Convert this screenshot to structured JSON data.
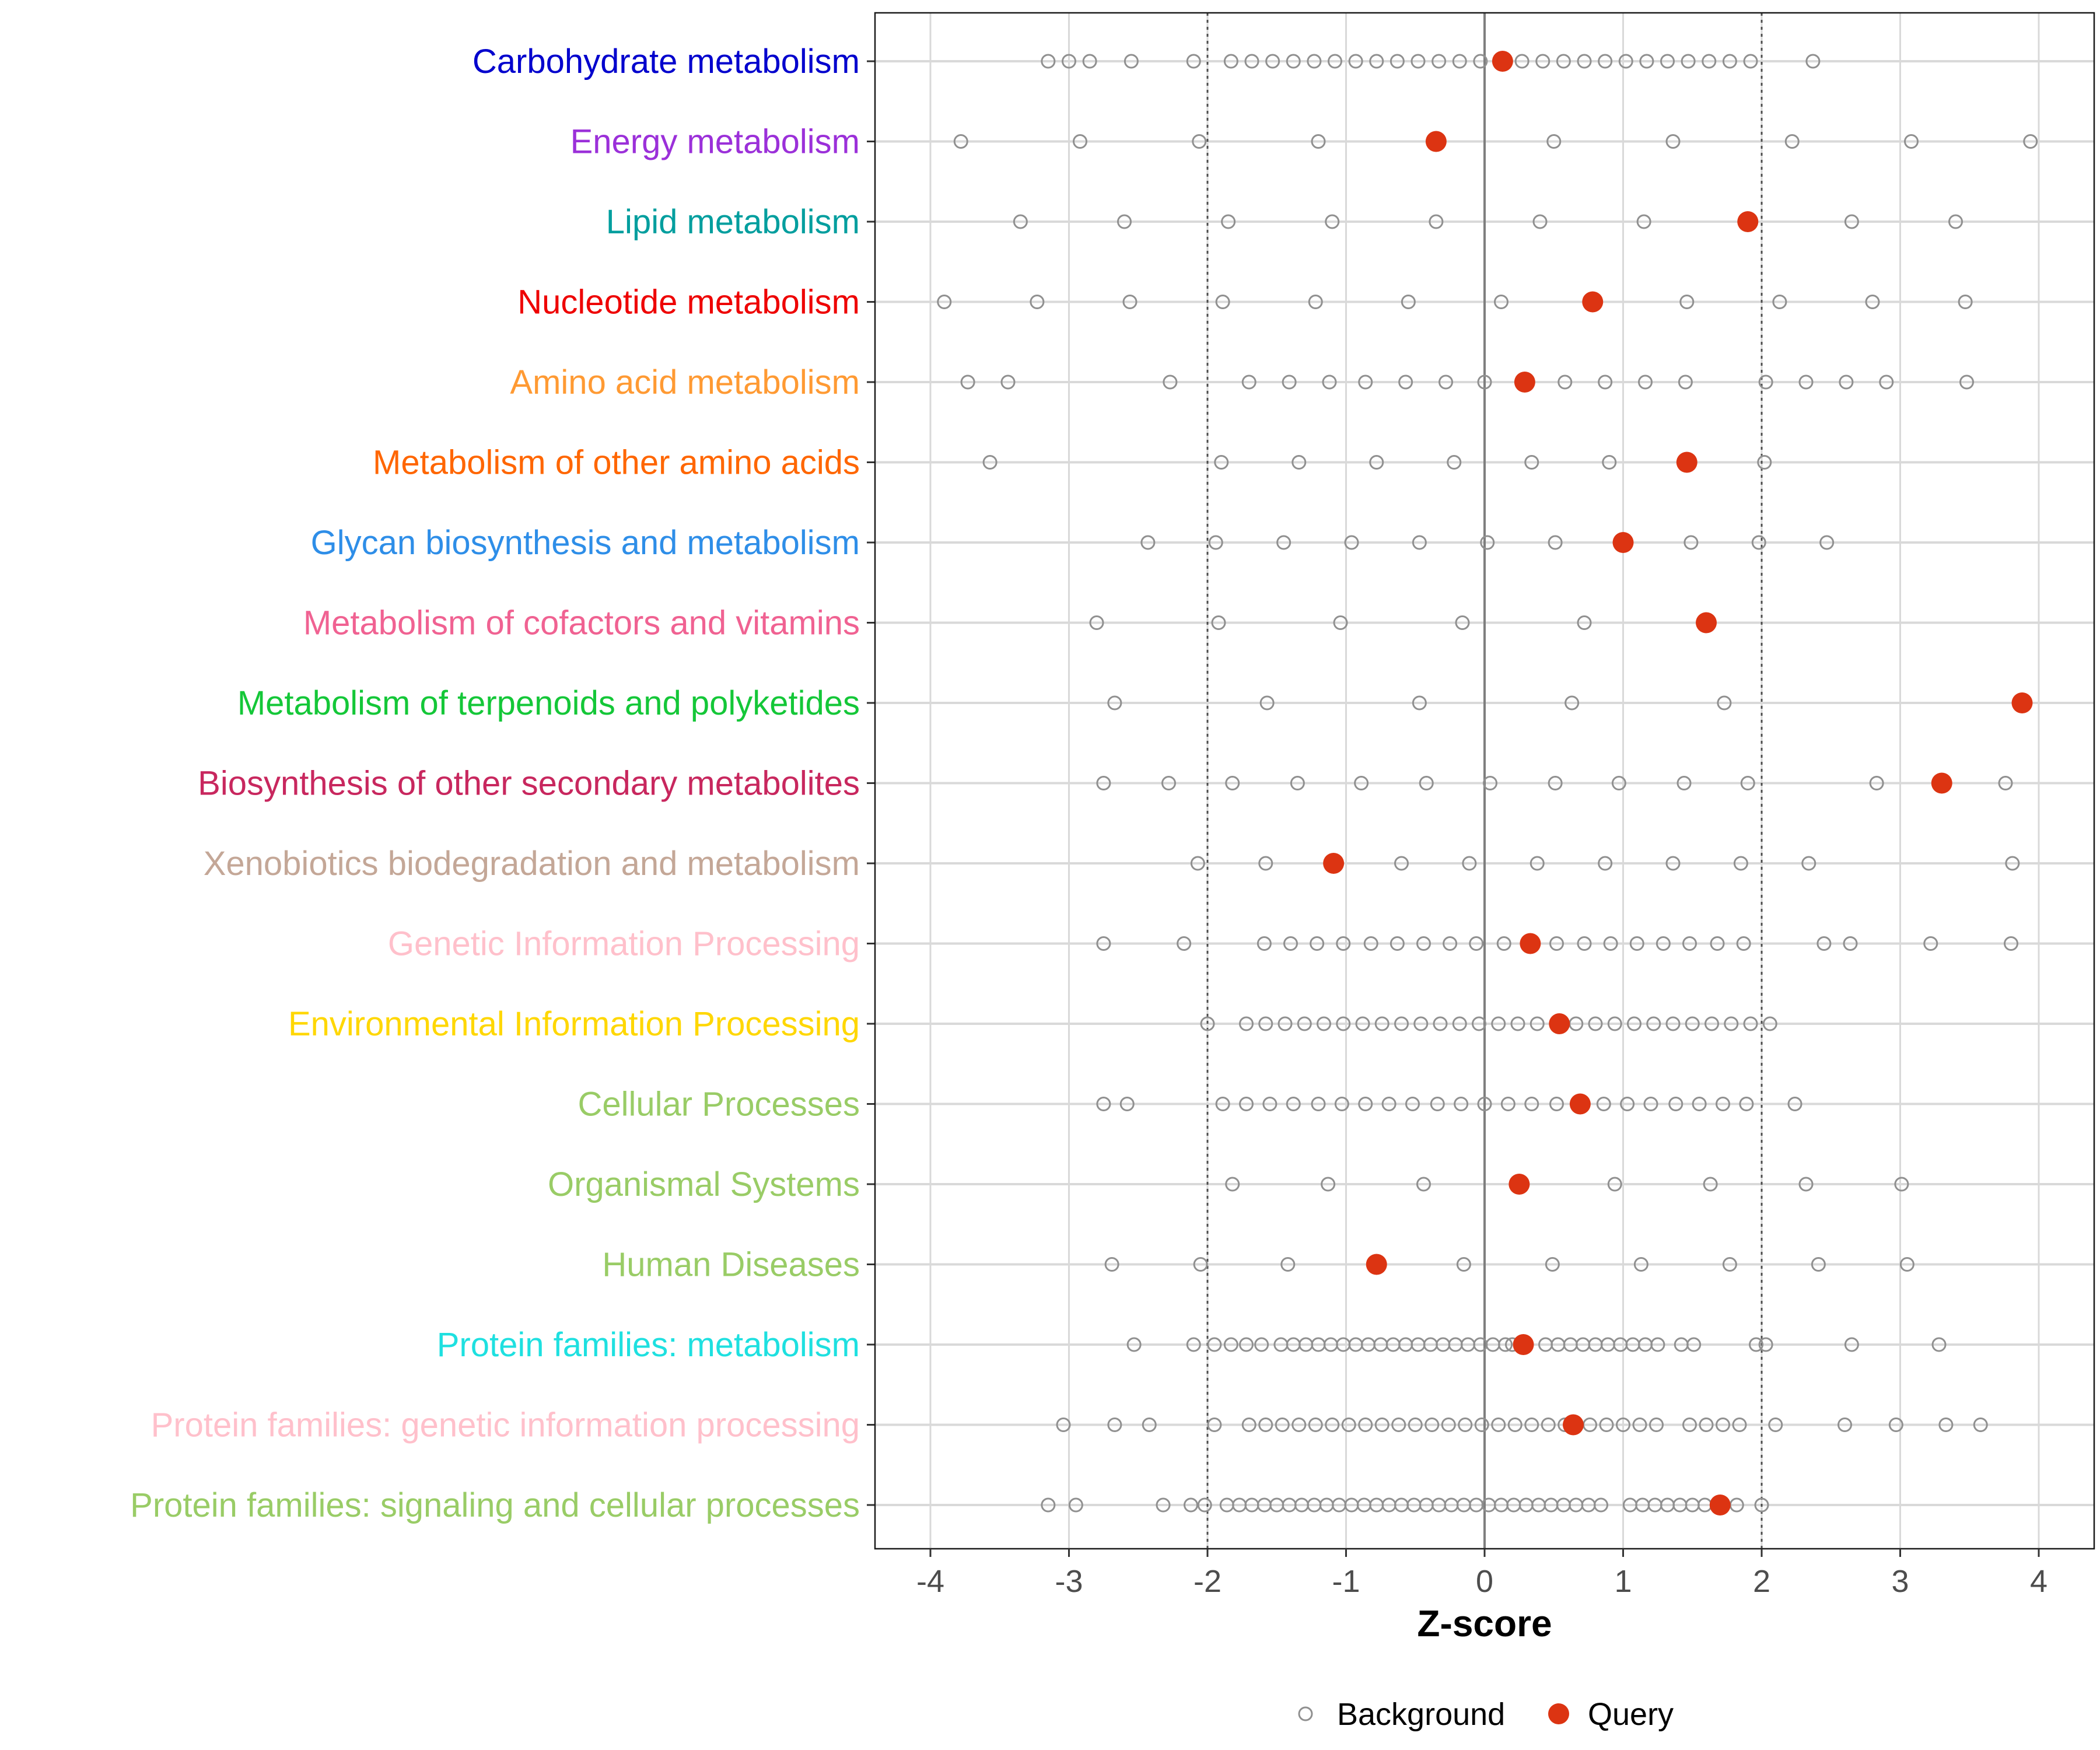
{
  "chart_data": {
    "type": "scatter",
    "title": "",
    "xlabel": "Z-score",
    "ylabel": "",
    "xlim": [
      -4.4,
      4.4
    ],
    "xticks": [
      -4,
      -3,
      -2,
      -1,
      0,
      1,
      2,
      3,
      4
    ],
    "xtick_labels": [
      "-4",
      "-3",
      "-2",
      "-1",
      "0",
      "1",
      "2",
      "3",
      "4"
    ],
    "reference_lines": [
      -2,
      0,
      2
    ],
    "legend": {
      "position": "bottom",
      "background_label": "Background",
      "query_label": "Query"
    },
    "colors": {
      "background": "#909090",
      "query": "#dc3412",
      "grid": "#d9d9d9",
      "zero_line": "#7f7f7f"
    },
    "categories": [
      {
        "label": "Carbohydrate metabolism",
        "color": "#0000cd",
        "background": [
          -3.15,
          -3.0,
          -2.85,
          -2.55,
          -2.1,
          -1.83,
          -1.68,
          -1.53,
          -1.38,
          -1.23,
          -1.08,
          -0.93,
          -0.78,
          -0.63,
          -0.48,
          -0.33,
          -0.18,
          -0.03,
          0.12,
          0.27,
          0.42,
          0.57,
          0.72,
          0.87,
          1.02,
          1.17,
          1.32,
          1.47,
          1.62,
          1.77,
          1.92,
          2.37
        ],
        "query": 0.13
      },
      {
        "label": "Energy metabolism",
        "color": "#9b30d9",
        "background": [
          -3.78,
          -2.92,
          -2.06,
          -1.2,
          0.5,
          1.36,
          2.22,
          3.08,
          3.94
        ],
        "query": -0.35
      },
      {
        "label": "Lipid metabolism",
        "color": "#009e9e",
        "background": [
          -3.35,
          -2.6,
          -1.85,
          -1.1,
          -0.35,
          0.4,
          1.15,
          2.65,
          3.4
        ],
        "query": 1.9
      },
      {
        "label": "Nucleotide metabolism",
        "color": "#ee0000",
        "background": [
          -3.9,
          -3.23,
          -2.56,
          -1.89,
          -1.22,
          -0.55,
          0.12,
          1.46,
          2.13,
          2.8,
          3.47
        ],
        "query": 0.78
      },
      {
        "label": "Amino acid metabolism",
        "color": "#ff9a33",
        "background": [
          -3.73,
          -3.44,
          -2.27,
          -1.7,
          -1.41,
          -1.12,
          -0.86,
          -0.57,
          -0.28,
          0.0,
          0.58,
          0.87,
          1.16,
          1.45,
          2.03,
          2.32,
          2.61,
          2.9,
          3.48
        ],
        "query": 0.29
      },
      {
        "label": "Metabolism of other amino acids",
        "color": "#ff6600",
        "background": [
          -3.57,
          -1.9,
          -1.34,
          -0.78,
          -0.22,
          0.34,
          0.9,
          2.02
        ],
        "query": 1.46
      },
      {
        "label": "Glycan biosynthesis and metabolism",
        "color": "#2e8ee8",
        "background": [
          -2.43,
          -1.94,
          -1.45,
          -0.96,
          -0.47,
          0.02,
          0.51,
          1.49,
          1.98,
          2.47
        ],
        "query": 1.0
      },
      {
        "label": "Metabolism of cofactors and vitamins",
        "color": "#f06292",
        "background": [
          -2.8,
          -1.92,
          -1.04,
          -0.16,
          0.72
        ],
        "query": 1.6
      },
      {
        "label": "Metabolism of terpenoids and polyketides",
        "color": "#14c738",
        "background": [
          -2.67,
          -1.57,
          -0.47,
          0.63,
          1.73
        ],
        "query": 3.88
      },
      {
        "label": "Biosynthesis of other secondary metabolites",
        "color": "#c8275e",
        "background": [
          -2.75,
          -2.28,
          -1.82,
          -1.35,
          -0.89,
          -0.42,
          0.04,
          0.51,
          0.97,
          1.44,
          1.9,
          2.83,
          3.76
        ],
        "query": 3.3
      },
      {
        "label": "Xenobiotics biodegradation and metabolism",
        "color": "#c4a797",
        "background": [
          -2.07,
          -1.58,
          -0.6,
          -0.11,
          0.38,
          0.87,
          1.36,
          1.85,
          2.34,
          3.81
        ],
        "query": -1.09
      },
      {
        "label": "Genetic Information Processing",
        "color": "#ffc0cb",
        "background": [
          -2.75,
          -2.17,
          -1.59,
          -1.4,
          -1.21,
          -1.02,
          -0.82,
          -0.63,
          -0.44,
          -0.25,
          -0.06,
          0.14,
          0.52,
          0.72,
          0.91,
          1.1,
          1.29,
          1.48,
          1.68,
          1.87,
          2.45,
          2.64,
          3.22,
          3.8
        ],
        "query": 0.33
      },
      {
        "label": "Environmental Information Processing",
        "color": "#ffd700",
        "background": [
          -2.0,
          -1.72,
          -1.58,
          -1.44,
          -1.3,
          -1.16,
          -1.02,
          -0.88,
          -0.74,
          -0.6,
          -0.46,
          -0.32,
          -0.18,
          -0.04,
          0.1,
          0.24,
          0.38,
          0.66,
          0.8,
          0.94,
          1.08,
          1.22,
          1.36,
          1.5,
          1.64,
          1.78,
          1.92,
          2.06
        ],
        "query": 0.54
      },
      {
        "label": "Cellular Processes",
        "color": "#99cc66",
        "background": [
          -2.75,
          -2.58,
          -1.89,
          -1.72,
          -1.55,
          -1.38,
          -1.2,
          -1.03,
          -0.86,
          -0.69,
          -0.52,
          -0.34,
          -0.17,
          0.0,
          0.17,
          0.34,
          0.52,
          0.86,
          1.03,
          1.2,
          1.38,
          1.55,
          1.72,
          1.89,
          2.24
        ],
        "query": 0.69
      },
      {
        "label": "Organismal Systems",
        "color": "#99cc66",
        "background": [
          -1.82,
          -1.13,
          -0.44,
          0.94,
          1.63,
          2.32,
          3.01
        ],
        "query": 0.25
      },
      {
        "label": "Human Diseases",
        "color": "#99cc66",
        "background": [
          -2.69,
          -2.05,
          -1.42,
          -0.15,
          0.49,
          1.13,
          1.77,
          2.41,
          3.05
        ],
        "query": -0.78
      },
      {
        "label": "Protein families: metabolism",
        "color": "#1ee0e0",
        "background": [
          -2.53,
          -2.1,
          -1.95,
          -1.83,
          -1.72,
          -1.61,
          -1.47,
          -1.38,
          -1.29,
          -1.2,
          -1.11,
          -1.02,
          -0.93,
          -0.84,
          -0.75,
          -0.66,
          -0.57,
          -0.48,
          -0.39,
          -0.3,
          -0.21,
          -0.12,
          -0.03,
          0.06,
          0.15,
          0.2,
          0.44,
          0.53,
          0.62,
          0.71,
          0.8,
          0.89,
          0.98,
          1.07,
          1.16,
          1.25,
          1.42,
          1.51,
          1.96,
          2.03,
          2.65,
          3.28
        ],
        "query": 0.28
      },
      {
        "label": "Protein families: genetic information processing",
        "color": "#ffc0cb",
        "background": [
          -3.04,
          -2.67,
          -2.42,
          -1.95,
          -1.7,
          -1.58,
          -1.46,
          -1.34,
          -1.22,
          -1.1,
          -0.98,
          -0.86,
          -0.74,
          -0.62,
          -0.5,
          -0.38,
          -0.26,
          -0.14,
          -0.02,
          0.1,
          0.22,
          0.34,
          0.46,
          0.58,
          0.76,
          0.88,
          1.0,
          1.12,
          1.24,
          1.48,
          1.6,
          1.72,
          1.84,
          2.1,
          2.6,
          2.97,
          3.33,
          3.58
        ],
        "query": 0.64
      },
      {
        "label": "Protein families: signaling and cellular processes",
        "color": "#99cc66",
        "background": [
          -3.15,
          -2.95,
          -2.32,
          -2.12,
          -2.02,
          -1.86,
          -1.77,
          -1.68,
          -1.59,
          -1.5,
          -1.41,
          -1.32,
          -1.23,
          -1.14,
          -1.05,
          -0.96,
          -0.87,
          -0.78,
          -0.69,
          -0.6,
          -0.51,
          -0.42,
          -0.33,
          -0.24,
          -0.15,
          -0.06,
          0.03,
          0.12,
          0.21,
          0.3,
          0.39,
          0.48,
          0.57,
          0.66,
          0.75,
          0.84,
          1.05,
          1.14,
          1.23,
          1.32,
          1.41,
          1.5,
          1.59,
          1.68,
          1.82,
          2.0
        ],
        "query": 1.7
      }
    ]
  }
}
